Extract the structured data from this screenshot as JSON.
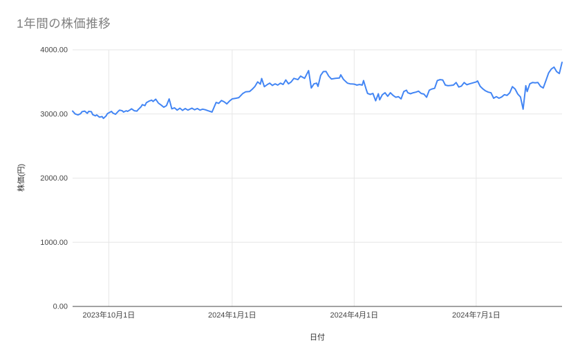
{
  "chart_data": {
    "type": "line",
    "title": "1年間の株価推移",
    "xlabel": "日付",
    "ylabel": "株価(円)",
    "ylim": [
      0,
      4000
    ],
    "x_range": [
      "2023-09-04",
      "2024-09-03"
    ],
    "grid": true,
    "legend": "none",
    "colors": {
      "line": "#4285F4",
      "title": "#808080",
      "tick_label": "#444444",
      "axis_title": "#333333",
      "gridline": "#e6e6e6",
      "axis_line": "#444444",
      "background": "#ffffff"
    },
    "y_ticks": [
      {
        "label": "0.00",
        "value": 0
      },
      {
        "label": "1000.00",
        "value": 1000
      },
      {
        "label": "2000.00",
        "value": 2000
      },
      {
        "label": "3000.00",
        "value": 3000
      },
      {
        "label": "4000.00",
        "value": 4000
      }
    ],
    "x_ticks": [
      {
        "label": "2023年10月1日",
        "date": "2023-10-01"
      },
      {
        "label": "2024年1月1日",
        "date": "2024-01-01"
      },
      {
        "label": "2024年4月1日",
        "date": "2024-04-01"
      },
      {
        "label": "2024年7月1日",
        "date": "2024-07-01"
      }
    ],
    "points": [
      [
        "2023-09-04",
        3045
      ],
      [
        "2023-09-06",
        3000
      ],
      [
        "2023-09-08",
        2985
      ],
      [
        "2023-09-10",
        3005
      ],
      [
        "2023-09-11",
        3035
      ],
      [
        "2023-09-13",
        3045
      ],
      [
        "2023-09-15",
        3010
      ],
      [
        "2023-09-16",
        3040
      ],
      [
        "2023-09-18",
        3035
      ],
      [
        "2023-09-19",
        2990
      ],
      [
        "2023-09-21",
        2970
      ],
      [
        "2023-09-22",
        2985
      ],
      [
        "2023-09-24",
        2950
      ],
      [
        "2023-09-26",
        2960
      ],
      [
        "2023-09-27",
        2930
      ],
      [
        "2023-09-29",
        2970
      ],
      [
        "2023-09-30",
        3005
      ],
      [
        "2023-10-03",
        3040
      ],
      [
        "2023-10-04",
        3015
      ],
      [
        "2023-10-06",
        2995
      ],
      [
        "2023-10-08",
        3040
      ],
      [
        "2023-10-09",
        3060
      ],
      [
        "2023-10-11",
        3050
      ],
      [
        "2023-10-12",
        3030
      ],
      [
        "2023-10-14",
        3050
      ],
      [
        "2023-10-15",
        3040
      ],
      [
        "2023-10-17",
        3065
      ],
      [
        "2023-10-18",
        3080
      ],
      [
        "2023-10-20",
        3050
      ],
      [
        "2023-10-22",
        3045
      ],
      [
        "2023-10-23",
        3070
      ],
      [
        "2023-10-25",
        3110
      ],
      [
        "2023-10-26",
        3145
      ],
      [
        "2023-10-28",
        3130
      ],
      [
        "2023-10-29",
        3175
      ],
      [
        "2023-10-31",
        3200
      ],
      [
        "2023-11-02",
        3215
      ],
      [
        "2023-11-03",
        3195
      ],
      [
        "2023-11-05",
        3230
      ],
      [
        "2023-11-07",
        3170
      ],
      [
        "2023-11-09",
        3140
      ],
      [
        "2023-11-11",
        3105
      ],
      [
        "2023-11-13",
        3130
      ],
      [
        "2023-11-15",
        3235
      ],
      [
        "2023-11-17",
        3080
      ],
      [
        "2023-11-19",
        3095
      ],
      [
        "2023-11-21",
        3060
      ],
      [
        "2023-11-23",
        3090
      ],
      [
        "2023-11-25",
        3055
      ],
      [
        "2023-11-27",
        3085
      ],
      [
        "2023-11-29",
        3060
      ],
      [
        "2023-12-02",
        3090
      ],
      [
        "2023-12-04",
        3065
      ],
      [
        "2023-12-06",
        3085
      ],
      [
        "2023-12-08",
        3060
      ],
      [
        "2023-12-10",
        3075
      ],
      [
        "2023-12-12",
        3065
      ],
      [
        "2023-12-14",
        3050
      ],
      [
        "2023-12-17",
        3030
      ],
      [
        "2023-12-20",
        3180
      ],
      [
        "2023-12-22",
        3165
      ],
      [
        "2023-12-24",
        3210
      ],
      [
        "2023-12-26",
        3190
      ],
      [
        "2023-12-28",
        3157
      ],
      [
        "2023-12-30",
        3200
      ],
      [
        "2024-01-01",
        3235
      ],
      [
        "2024-01-04",
        3245
      ],
      [
        "2024-01-06",
        3255
      ],
      [
        "2024-01-09",
        3320
      ],
      [
        "2024-01-11",
        3345
      ],
      [
        "2024-01-14",
        3350
      ],
      [
        "2024-01-16",
        3385
      ],
      [
        "2024-01-18",
        3430
      ],
      [
        "2024-01-20",
        3500
      ],
      [
        "2024-01-22",
        3465
      ],
      [
        "2024-01-23",
        3553
      ],
      [
        "2024-01-25",
        3425
      ],
      [
        "2024-01-27",
        3455
      ],
      [
        "2024-01-29",
        3480
      ],
      [
        "2024-01-31",
        3445
      ],
      [
        "2024-02-02",
        3470
      ],
      [
        "2024-02-04",
        3450
      ],
      [
        "2024-02-06",
        3480
      ],
      [
        "2024-02-08",
        3460
      ],
      [
        "2024-02-10",
        3530
      ],
      [
        "2024-02-12",
        3470
      ],
      [
        "2024-02-14",
        3500
      ],
      [
        "2024-02-16",
        3555
      ],
      [
        "2024-02-19",
        3535
      ],
      [
        "2024-02-21",
        3590
      ],
      [
        "2024-02-24",
        3555
      ],
      [
        "2024-02-27",
        3675
      ],
      [
        "2024-02-29",
        3405
      ],
      [
        "2024-03-02",
        3470
      ],
      [
        "2024-03-04",
        3480
      ],
      [
        "2024-03-05",
        3430
      ],
      [
        "2024-03-07",
        3600
      ],
      [
        "2024-03-09",
        3660
      ],
      [
        "2024-03-11",
        3663
      ],
      [
        "2024-03-13",
        3590
      ],
      [
        "2024-03-15",
        3545
      ],
      [
        "2024-03-18",
        3555
      ],
      [
        "2024-03-21",
        3560
      ],
      [
        "2024-03-22",
        3610
      ],
      [
        "2024-03-24",
        3540
      ],
      [
        "2024-03-27",
        3480
      ],
      [
        "2024-03-29",
        3470
      ],
      [
        "2024-04-01",
        3465
      ],
      [
        "2024-04-03",
        3450
      ],
      [
        "2024-04-05",
        3460
      ],
      [
        "2024-04-07",
        3450
      ],
      [
        "2024-04-08",
        3520
      ],
      [
        "2024-04-10",
        3380
      ],
      [
        "2024-04-11",
        3320
      ],
      [
        "2024-04-13",
        3305
      ],
      [
        "2024-04-15",
        3320
      ],
      [
        "2024-04-17",
        3205
      ],
      [
        "2024-04-19",
        3315
      ],
      [
        "2024-04-20",
        3220
      ],
      [
        "2024-04-22",
        3300
      ],
      [
        "2024-04-24",
        3330
      ],
      [
        "2024-04-26",
        3275
      ],
      [
        "2024-04-28",
        3330
      ],
      [
        "2024-04-30",
        3290
      ],
      [
        "2024-05-02",
        3260
      ],
      [
        "2024-05-04",
        3270
      ],
      [
        "2024-05-06",
        3235
      ],
      [
        "2024-05-08",
        3350
      ],
      [
        "2024-05-10",
        3370
      ],
      [
        "2024-05-11",
        3330
      ],
      [
        "2024-05-13",
        3315
      ],
      [
        "2024-05-15",
        3330
      ],
      [
        "2024-05-17",
        3340
      ],
      [
        "2024-05-19",
        3355
      ],
      [
        "2024-05-21",
        3320
      ],
      [
        "2024-05-23",
        3310
      ],
      [
        "2024-05-25",
        3260
      ],
      [
        "2024-05-27",
        3370
      ],
      [
        "2024-05-29",
        3390
      ],
      [
        "2024-05-31",
        3400
      ],
      [
        "2024-06-02",
        3520
      ],
      [
        "2024-06-04",
        3535
      ],
      [
        "2024-06-06",
        3530
      ],
      [
        "2024-06-08",
        3450
      ],
      [
        "2024-06-10",
        3440
      ],
      [
        "2024-06-12",
        3445
      ],
      [
        "2024-06-14",
        3450
      ],
      [
        "2024-06-16",
        3490
      ],
      [
        "2024-06-18",
        3420
      ],
      [
        "2024-06-20",
        3435
      ],
      [
        "2024-06-22",
        3490
      ],
      [
        "2024-06-24",
        3455
      ],
      [
        "2024-06-26",
        3470
      ],
      [
        "2024-07-01",
        3500
      ],
      [
        "2024-07-02",
        3515
      ],
      [
        "2024-07-04",
        3430
      ],
      [
        "2024-07-06",
        3390
      ],
      [
        "2024-07-08",
        3360
      ],
      [
        "2024-07-10",
        3340
      ],
      [
        "2024-07-12",
        3330
      ],
      [
        "2024-07-14",
        3245
      ],
      [
        "2024-07-16",
        3270
      ],
      [
        "2024-07-18",
        3245
      ],
      [
        "2024-07-20",
        3265
      ],
      [
        "2024-07-22",
        3300
      ],
      [
        "2024-07-24",
        3290
      ],
      [
        "2024-07-26",
        3330
      ],
      [
        "2024-07-28",
        3425
      ],
      [
        "2024-07-30",
        3390
      ],
      [
        "2024-08-01",
        3310
      ],
      [
        "2024-08-03",
        3265
      ],
      [
        "2024-08-05",
        3075
      ],
      [
        "2024-08-07",
        3440
      ],
      [
        "2024-08-08",
        3350
      ],
      [
        "2024-08-10",
        3470
      ],
      [
        "2024-08-12",
        3490
      ],
      [
        "2024-08-14",
        3485
      ],
      [
        "2024-08-16",
        3490
      ],
      [
        "2024-08-18",
        3430
      ],
      [
        "2024-08-20",
        3405
      ],
      [
        "2024-08-22",
        3520
      ],
      [
        "2024-08-24",
        3640
      ],
      [
        "2024-08-26",
        3700
      ],
      [
        "2024-08-28",
        3730
      ],
      [
        "2024-08-30",
        3660
      ],
      [
        "2024-09-01",
        3630
      ],
      [
        "2024-09-03",
        3805
      ]
    ]
  }
}
